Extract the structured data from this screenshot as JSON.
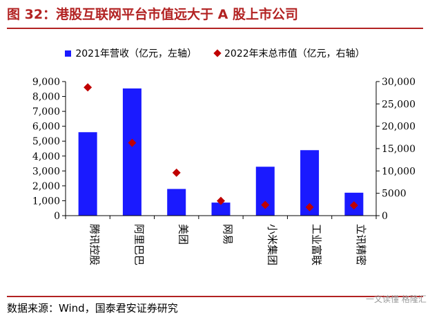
{
  "title": "图 32：港股互联网平台市值远大于 A 股上市公司",
  "source": "数据来源：Wind，国泰君安证券研究",
  "watermark": "一文读懂 格隆汇",
  "chart_data": {
    "type": "bar",
    "categories": [
      "腾讯控股",
      "阿里巴巴",
      "美团",
      "网易",
      "小米集团",
      "工业富联",
      "立讯精密"
    ],
    "series": [
      {
        "name": "2021年营收（亿元，左轴）",
        "type": "bar",
        "axis": "left",
        "color": "#1a1aff",
        "values": [
          5601,
          8537,
          1791,
          876,
          3283,
          4395,
          1539
        ]
      },
      {
        "name": "2022年末总市值（亿元，右轴）",
        "type": "scatter",
        "axis": "right",
        "color": "#c00000",
        "values": [
          28700,
          16300,
          9600,
          3300,
          2400,
          1900,
          2300
        ]
      }
    ],
    "y_left": {
      "min": 0,
      "max": 9000,
      "ticks": [
        "0",
        "1,000",
        "2,000",
        "3,000",
        "4,000",
        "5,000",
        "6,000",
        "7,000",
        "8,000",
        "9,000"
      ]
    },
    "y_right": {
      "min": 0,
      "max": 30000,
      "ticks": [
        "0",
        "5000",
        "10,000",
        "15,000",
        "20,000",
        "25,000",
        "30,000"
      ]
    },
    "legend_position": "top"
  }
}
